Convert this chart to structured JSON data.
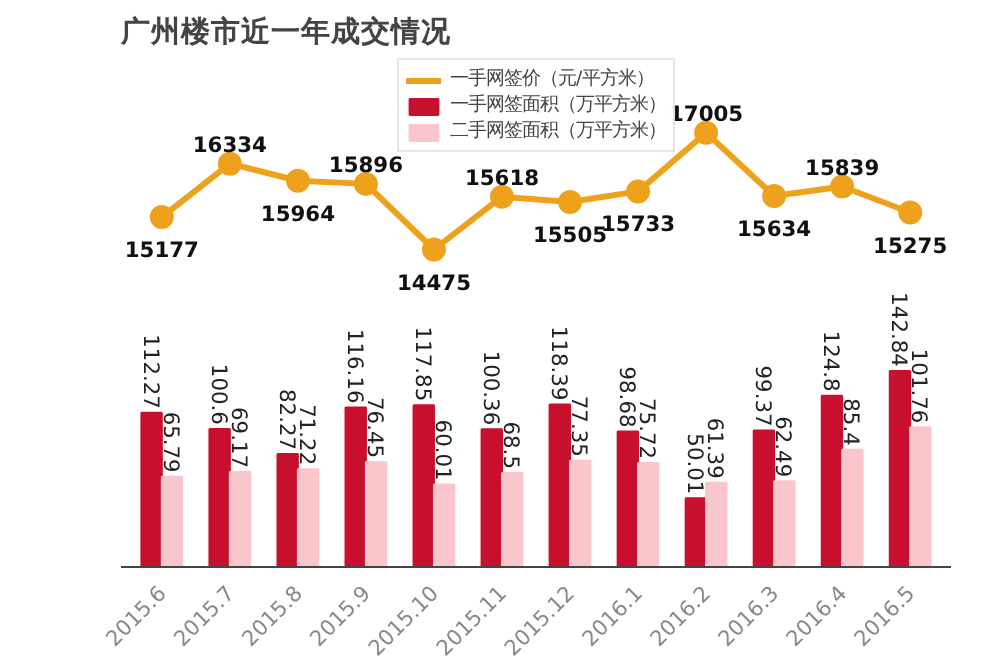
{
  "chart_data": {
    "type": "bar",
    "title": "广州楼市近一年成交情况",
    "categories": [
      "2015.6",
      "2015.7",
      "2015.8",
      "2015.9",
      "2015.10",
      "2015.11",
      "2015.12",
      "2016.1",
      "2016.2",
      "2016.3",
      "2016.4",
      "2016.5"
    ],
    "series": [
      {
        "name": "一手网签价（元/平方米）",
        "type": "line",
        "axis": "y2",
        "color": "#eea21c",
        "values": [
          15177,
          16334,
          15964,
          15896,
          14475,
          15618,
          15505,
          15733,
          17005,
          15634,
          15839,
          15275
        ]
      },
      {
        "name": "一手网签面积（万平方米）",
        "color": "#c8102e",
        "values": [
          112.27,
          100.6,
          82.27,
          116.16,
          117.85,
          100.36,
          118.39,
          98.68,
          50.01,
          99.37,
          124.8,
          142.84
        ]
      },
      {
        "name": "二手网签面积（万平方米）",
        "color": "#f9c6cc",
        "values": [
          65.79,
          69.17,
          71.22,
          76.45,
          60.01,
          68.5,
          77.35,
          75.72,
          61.39,
          62.49,
          85.4,
          101.76
        ]
      }
    ],
    "ylim": [
      0,
      370
    ],
    "y2lim": [
      7600,
      18600
    ],
    "data_labels": true,
    "tick_labels": "x",
    "marker": "circle",
    "legend": "top",
    "grid": false
  }
}
